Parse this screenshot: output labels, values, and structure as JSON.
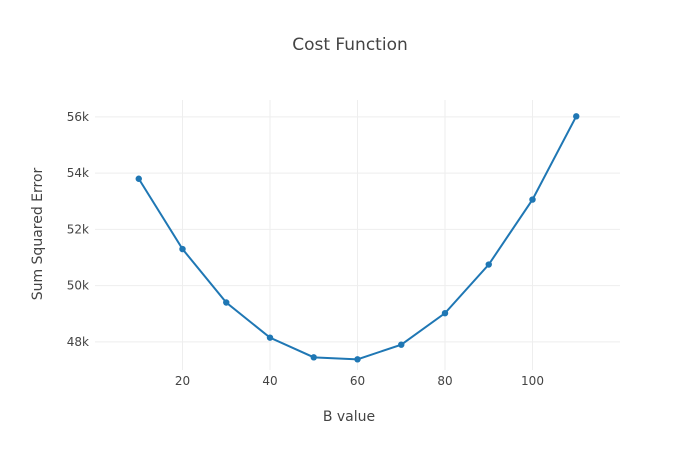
{
  "chart_data": {
    "type": "line",
    "title": "Cost Function",
    "xlabel": "B value",
    "ylabel": "Sum Squared Error",
    "x": [
      10,
      20,
      30,
      40,
      50,
      60,
      70,
      80,
      90,
      100,
      110
    ],
    "series": [
      {
        "values": [
          53800,
          51300,
          49400,
          48150,
          47450,
          47380,
          47900,
          49020,
          50750,
          53060,
          56020
        ],
        "color": "#1f77b4"
      }
    ],
    "xlim": [
      0,
      120
    ],
    "ylim": [
      47000,
      56600
    ],
    "xticks": [
      20,
      40,
      60,
      80,
      100
    ],
    "xtick_labels": [
      "20",
      "40",
      "60",
      "80",
      "100"
    ],
    "yticks": [
      48000,
      50000,
      52000,
      54000,
      56000
    ],
    "ytick_labels": [
      "48k",
      "50k",
      "52k",
      "54k",
      "56k"
    ],
    "grid": true,
    "markers": true
  }
}
